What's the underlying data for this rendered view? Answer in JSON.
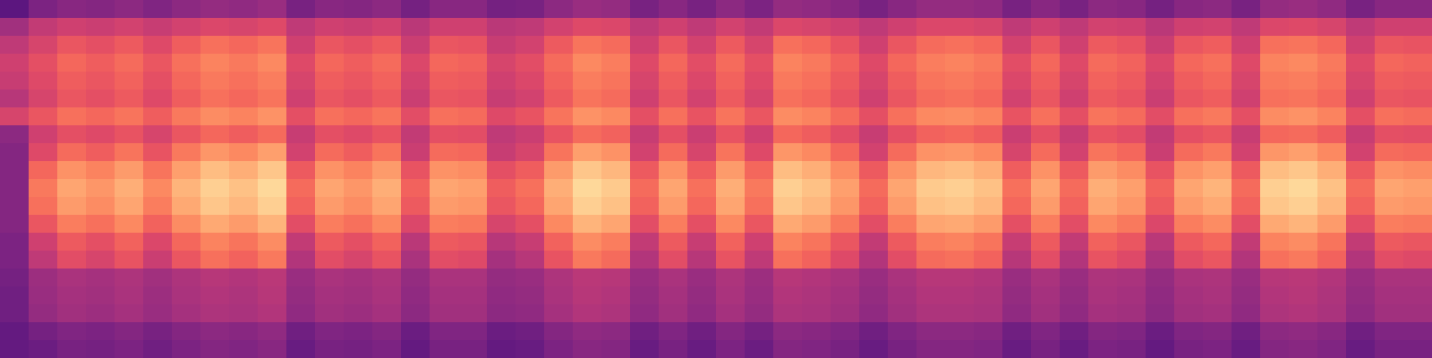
{
  "chart_data": {
    "type": "heatmap",
    "color": "magma",
    "tick_labels": false,
    "color_range": [
      0,
      100
    ],
    "cells": [
      [
        28,
        36,
        39,
        38,
        40,
        37,
        40,
        42,
        41,
        43,
        35,
        39,
        38,
        40,
        34,
        39,
        39,
        34,
        35,
        40,
        43,
        42,
        35,
        39,
        35,
        40,
        36,
        42,
        41,
        39,
        35,
        39,
        42,
        42,
        41,
        35,
        39,
        35,
        40,
        39,
        34,
        39,
        40,
        35,
        42,
        43,
        41,
        35,
        39,
        39
      ],
      [
        45,
        53,
        56,
        55,
        57,
        54,
        57,
        59,
        58,
        60,
        52,
        56,
        55,
        57,
        51,
        56,
        56,
        51,
        52,
        57,
        60,
        59,
        52,
        56,
        52,
        57,
        53,
        59,
        58,
        56,
        52,
        56,
        59,
        59,
        58,
        52,
        56,
        52,
        57,
        56,
        51,
        56,
        57,
        52,
        59,
        60,
        58,
        52,
        56,
        56
      ],
      [
        52,
        58,
        64,
        62,
        65,
        60,
        66,
        70,
        68,
        71,
        56,
        64,
        62,
        65,
        55,
        64,
        63,
        54,
        57,
        65,
        71,
        69,
        56,
        64,
        57,
        65,
        58,
        70,
        68,
        63,
        56,
        64,
        69,
        70,
        68,
        57,
        64,
        56,
        65,
        63,
        55,
        64,
        66,
        56,
        70,
        71,
        68,
        56,
        64,
        63
      ],
      [
        56,
        62,
        68,
        66,
        69,
        64,
        70,
        74,
        72,
        75,
        60,
        68,
        66,
        69,
        59,
        68,
        67,
        58,
        61,
        69,
        75,
        73,
        60,
        68,
        61,
        69,
        62,
        74,
        72,
        67,
        60,
        68,
        73,
        74,
        72,
        61,
        68,
        60,
        69,
        67,
        59,
        68,
        70,
        60,
        74,
        75,
        72,
        60,
        68,
        67
      ],
      [
        54,
        60,
        66,
        64,
        67,
        62,
        68,
        72,
        70,
        73,
        58,
        66,
        64,
        67,
        57,
        66,
        65,
        56,
        59,
        67,
        73,
        71,
        58,
        66,
        59,
        67,
        60,
        72,
        70,
        65,
        58,
        66,
        71,
        72,
        70,
        59,
        66,
        58,
        67,
        65,
        57,
        66,
        68,
        58,
        72,
        73,
        70,
        58,
        66,
        65
      ],
      [
        50,
        58,
        64,
        62,
        65,
        60,
        66,
        70,
        68,
        71,
        56,
        64,
        62,
        65,
        55,
        64,
        63,
        54,
        57,
        65,
        71,
        69,
        56,
        64,
        57,
        65,
        58,
        70,
        68,
        63,
        56,
        64,
        69,
        70,
        68,
        57,
        64,
        56,
        65,
        63,
        55,
        64,
        66,
        56,
        70,
        71,
        68,
        56,
        64,
        63
      ],
      [
        58,
        64,
        70,
        68,
        71,
        66,
        72,
        76,
        74,
        77,
        62,
        70,
        68,
        71,
        61,
        70,
        69,
        60,
        63,
        71,
        77,
        75,
        62,
        70,
        63,
        71,
        64,
        76,
        74,
        69,
        62,
        70,
        75,
        76,
        74,
        63,
        70,
        62,
        71,
        69,
        61,
        70,
        72,
        62,
        76,
        77,
        74,
        62,
        70,
        69
      ],
      [
        40,
        56,
        62,
        60,
        63,
        58,
        64,
        68,
        66,
        69,
        54,
        62,
        60,
        63,
        53,
        62,
        61,
        52,
        55,
        63,
        69,
        67,
        54,
        62,
        55,
        63,
        56,
        68,
        66,
        61,
        54,
        62,
        67,
        68,
        66,
        55,
        62,
        54,
        63,
        61,
        53,
        62,
        64,
        54,
        68,
        69,
        66,
        54,
        62,
        61
      ],
      [
        38,
        60,
        69,
        66,
        71,
        63,
        72,
        78,
        75,
        80,
        57,
        69,
        66,
        71,
        55,
        69,
        68,
        54,
        58,
        71,
        80,
        77,
        57,
        69,
        58,
        71,
        60,
        78,
        75,
        68,
        57,
        69,
        77,
        78,
        75,
        58,
        69,
        57,
        71,
        68,
        55,
        69,
        72,
        57,
        78,
        80,
        75,
        57,
        69,
        68
      ],
      [
        38,
        68,
        77,
        74,
        79,
        71,
        80,
        86,
        83,
        88,
        65,
        77,
        74,
        79,
        63,
        77,
        76,
        62,
        66,
        79,
        88,
        85,
        65,
        77,
        66,
        79,
        68,
        86,
        83,
        76,
        65,
        77,
        85,
        86,
        83,
        66,
        77,
        65,
        79,
        76,
        63,
        77,
        80,
        65,
        86,
        88,
        83,
        65,
        77,
        76
      ],
      [
        38,
        72,
        81,
        78,
        83,
        75,
        84,
        90,
        87,
        92,
        69,
        81,
        78,
        83,
        67,
        81,
        80,
        66,
        70,
        83,
        92,
        89,
        69,
        81,
        70,
        83,
        72,
        90,
        87,
        80,
        69,
        81,
        89,
        90,
        87,
        70,
        81,
        69,
        83,
        80,
        67,
        81,
        84,
        69,
        90,
        92,
        87,
        69,
        81,
        80
      ],
      [
        38,
        70,
        79,
        76,
        81,
        73,
        82,
        88,
        85,
        90,
        67,
        79,
        76,
        81,
        65,
        79,
        78,
        64,
        68,
        81,
        90,
        87,
        67,
        79,
        68,
        81,
        70,
        88,
        85,
        78,
        67,
        79,
        87,
        88,
        85,
        68,
        79,
        67,
        81,
        78,
        65,
        79,
        82,
        67,
        88,
        90,
        85,
        67,
        79,
        78
      ],
      [
        38,
        64,
        73,
        70,
        75,
        67,
        76,
        82,
        79,
        84,
        61,
        73,
        70,
        75,
        59,
        73,
        72,
        58,
        62,
        75,
        84,
        81,
        61,
        73,
        62,
        75,
        64,
        82,
        79,
        72,
        61,
        73,
        81,
        82,
        79,
        62,
        73,
        61,
        75,
        72,
        59,
        73,
        76,
        61,
        82,
        84,
        79,
        61,
        73,
        72
      ],
      [
        36,
        56,
        65,
        62,
        67,
        59,
        68,
        74,
        71,
        76,
        53,
        65,
        62,
        67,
        51,
        65,
        64,
        50,
        54,
        67,
        76,
        73,
        53,
        65,
        54,
        67,
        56,
        74,
        71,
        64,
        53,
        65,
        73,
        74,
        71,
        54,
        65,
        53,
        67,
        64,
        51,
        65,
        68,
        53,
        74,
        76,
        71,
        53,
        65,
        64
      ],
      [
        36,
        52,
        61,
        58,
        63,
        55,
        64,
        70,
        67,
        72,
        49,
        61,
        58,
        63,
        47,
        61,
        60,
        46,
        50,
        63,
        72,
        69,
        49,
        61,
        50,
        63,
        52,
        70,
        67,
        60,
        49,
        61,
        69,
        70,
        67,
        50,
        61,
        49,
        63,
        60,
        47,
        61,
        64,
        49,
        70,
        72,
        67,
        49,
        61,
        60
      ],
      [
        34,
        44,
        47,
        46,
        48,
        45,
        48,
        50,
        49,
        51,
        43,
        47,
        46,
        48,
        42,
        47,
        47,
        42,
        43,
        48,
        51,
        50,
        43,
        47,
        43,
        48,
        44,
        50,
        49,
        47,
        43,
        47,
        50,
        50,
        49,
        43,
        47,
        43,
        48,
        47,
        42,
        47,
        48,
        43,
        50,
        51,
        49,
        43,
        47,
        47
      ],
      [
        33,
        43,
        46,
        45,
        47,
        44,
        47,
        49,
        48,
        50,
        42,
        46,
        45,
        47,
        41,
        46,
        46,
        41,
        42,
        47,
        50,
        49,
        42,
        46,
        42,
        47,
        43,
        49,
        48,
        46,
        42,
        46,
        49,
        49,
        48,
        42,
        46,
        42,
        47,
        46,
        41,
        46,
        47,
        42,
        49,
        50,
        48,
        42,
        46,
        46
      ],
      [
        33,
        42,
        45,
        44,
        46,
        43,
        46,
        48,
        47,
        49,
        41,
        45,
        44,
        46,
        40,
        45,
        45,
        40,
        41,
        46,
        49,
        48,
        41,
        45,
        41,
        46,
        42,
        48,
        47,
        45,
        41,
        45,
        48,
        48,
        47,
        41,
        45,
        41,
        46,
        45,
        40,
        45,
        46,
        41,
        48,
        49,
        47,
        41,
        45,
        45
      ],
      [
        30,
        34,
        37,
        36,
        38,
        35,
        38,
        40,
        39,
        41,
        33,
        37,
        36,
        38,
        32,
        37,
        37,
        32,
        33,
        38,
        41,
        40,
        33,
        37,
        33,
        38,
        34,
        40,
        39,
        37,
        33,
        37,
        40,
        40,
        39,
        33,
        37,
        33,
        38,
        37,
        32,
        37,
        38,
        33,
        40,
        41,
        39,
        33,
        37,
        37
      ],
      [
        30,
        32,
        35,
        34,
        36,
        33,
        36,
        38,
        37,
        39,
        31,
        35,
        34,
        36,
        30,
        35,
        35,
        30,
        31,
        36,
        39,
        38,
        31,
        35,
        31,
        36,
        32,
        38,
        37,
        35,
        31,
        35,
        38,
        38,
        37,
        31,
        35,
        31,
        36,
        35,
        30,
        35,
        36,
        31,
        38,
        39,
        37,
        31,
        35,
        35
      ]
    ]
  }
}
